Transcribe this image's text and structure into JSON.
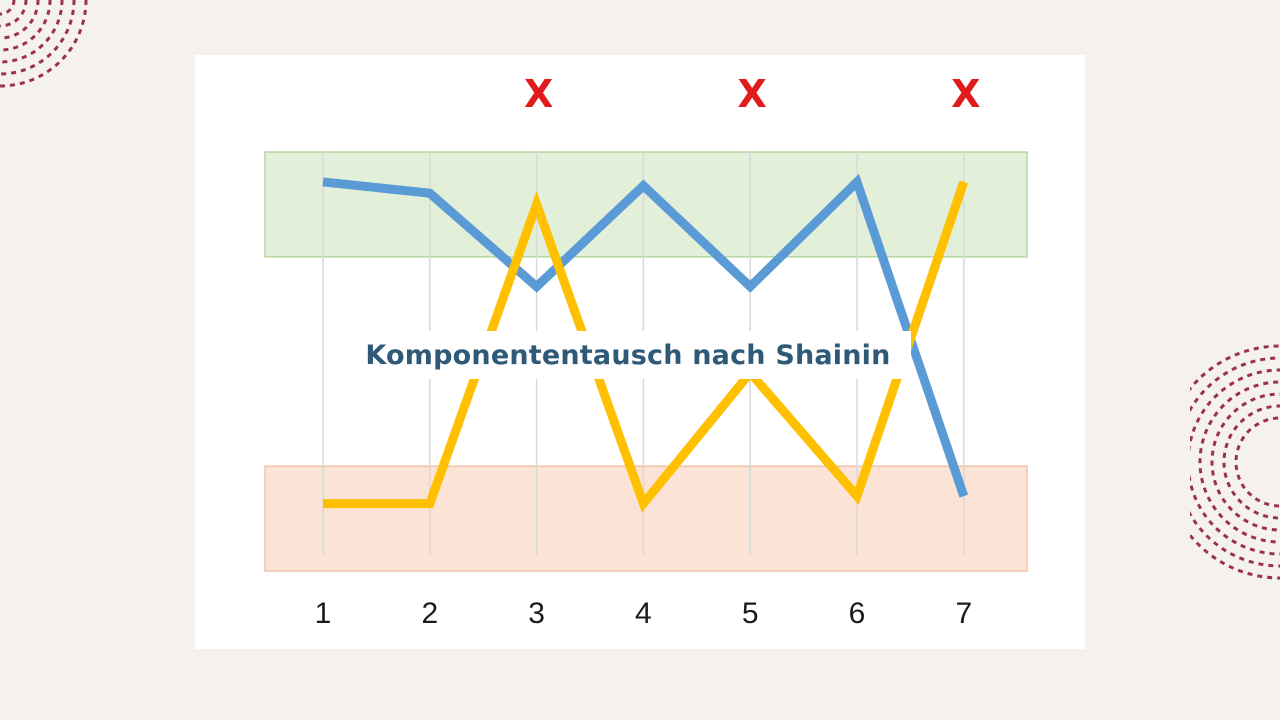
{
  "slide": {
    "title": "Komponententausch nach Shainin"
  },
  "colors": {
    "background": "#f5f1ee",
    "decoration": "#9b3348",
    "title": "#2e5a78",
    "good_band": "#e2efd9",
    "good_band_border": "#b5d6a2",
    "bad_band": "#fbe3d6",
    "bad_band_border": "#f0c3a8",
    "marker": "#e01b1b",
    "gridline": "#d9d9d9"
  },
  "chart_data": {
    "type": "line",
    "x": [
      "1",
      "2",
      "3",
      "4",
      "5",
      "6",
      "7"
    ],
    "ylim": [
      0,
      10
    ],
    "bands": [
      {
        "kind": "good",
        "range": [
          8.4,
          10.4
        ]
      },
      {
        "kind": "bad",
        "range": [
          0,
          2
        ]
      }
    ],
    "series": [
      {
        "color": "#5b9bd5",
        "values": [
          9.6,
          9.3,
          6.8,
          9.5,
          6.8,
          9.6,
          1.2
        ]
      },
      {
        "color": "#ffc000",
        "values": [
          1.0,
          1.0,
          9.0,
          1.0,
          4.5,
          1.2,
          9.6
        ]
      }
    ],
    "markers": [
      {
        "x": "3",
        "label": "X"
      },
      {
        "x": "5",
        "label": "X"
      },
      {
        "x": "7",
        "label": "X"
      }
    ],
    "grid": true
  }
}
